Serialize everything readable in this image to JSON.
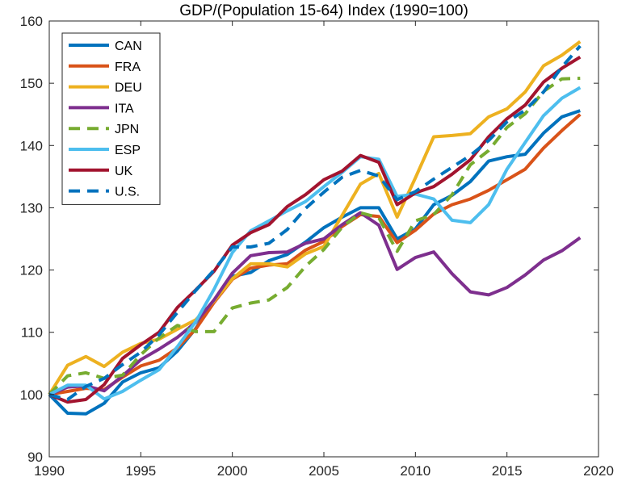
{
  "chart_data": {
    "type": "line",
    "title": "GDP/(Population 15-64) Index  (1990=100)",
    "xlabel": "",
    "ylabel": "",
    "xlim": [
      1990,
      2020
    ],
    "ylim": [
      90,
      160
    ],
    "xticks": [
      1990,
      1995,
      2000,
      2005,
      2010,
      2015,
      2020
    ],
    "yticks": [
      90,
      100,
      110,
      120,
      130,
      140,
      150,
      160
    ],
    "grid": false,
    "legend_position": "top-left",
    "x": [
      1990,
      1991,
      1992,
      1993,
      1994,
      1995,
      1996,
      1997,
      1998,
      1999,
      2000,
      2001,
      2002,
      2003,
      2004,
      2005,
      2006,
      2007,
      2008,
      2009,
      2010,
      2011,
      2012,
      2013,
      2014,
      2015,
      2016,
      2017,
      2018,
      2019
    ],
    "series": [
      {
        "name": "CAN",
        "color": "#0072BD",
        "dash": "solid",
        "values": [
          100,
          97,
          96.9,
          98.6,
          102,
          103.5,
          104.3,
          107,
          110.6,
          115,
          119,
          119.6,
          121.5,
          122.5,
          124.5,
          126.8,
          128.5,
          130,
          130,
          125,
          126.6,
          130.5,
          132,
          134.2,
          137.5,
          138.2,
          138.6,
          142,
          144.6,
          145.6
        ]
      },
      {
        "name": "FRA",
        "color": "#D95319",
        "dash": "solid",
        "values": [
          100,
          100.5,
          101,
          100.8,
          102.8,
          104.6,
          105.5,
          107.5,
          110.5,
          114.8,
          118.5,
          120.3,
          120.8,
          121,
          123.2,
          124.6,
          127,
          128.9,
          128.6,
          124.4,
          126.4,
          129,
          130.5,
          131.4,
          132.8,
          134.5,
          136.2,
          139.6,
          142.4,
          145
        ]
      },
      {
        "name": "DEU",
        "color": "#EDB120",
        "dash": "solid",
        "values": [
          100,
          104.7,
          106.1,
          104.5,
          106.8,
          108.2,
          108.9,
          110.5,
          112,
          115,
          118.6,
          121,
          121,
          120.5,
          122.6,
          123.8,
          128.8,
          133.8,
          135.5,
          128.5,
          134.8,
          141.4,
          141.6,
          141.9,
          144.6,
          145.9,
          148.6,
          152.8,
          154.5,
          156.7
        ]
      },
      {
        "name": "ITA",
        "color": "#7E2F8E",
        "dash": "solid",
        "values": [
          100,
          101.2,
          101.4,
          100.6,
          103,
          105.6,
          107.3,
          109.2,
          111.6,
          115.2,
          119.5,
          122.3,
          122.8,
          122.9,
          124.3,
          125,
          127.3,
          129.2,
          127.2,
          120.1,
          122,
          122.9,
          119.4,
          116.5,
          116,
          117.2,
          119.2,
          121.6,
          123.1,
          125.2
        ]
      },
      {
        "name": "JPN",
        "color": "#77AC30",
        "dash": "dashed",
        "values": [
          100,
          103,
          103.5,
          102.6,
          103.1,
          106.4,
          109.1,
          111.1,
          110.1,
          110.1,
          113.9,
          114.7,
          115.2,
          117.2,
          120.6,
          123.3,
          126.9,
          129.2,
          128.4,
          123,
          127.9,
          128.9,
          132.1,
          136.9,
          139.2,
          142.9,
          145.1,
          148.7,
          150.7,
          150.8
        ]
      },
      {
        "name": "ESP",
        "color": "#4DBEEE",
        "dash": "solid",
        "values": [
          100,
          101.5,
          101.5,
          99.3,
          100.5,
          102.3,
          104,
          107.7,
          111.7,
          116.9,
          122.8,
          126.3,
          127.9,
          129.5,
          131,
          133.4,
          135.7,
          138.2,
          137.8,
          131.8,
          132.2,
          131.4,
          128,
          127.6,
          130.5,
          136.2,
          140.5,
          144.8,
          147.6,
          149.3
        ]
      },
      {
        "name": "UK",
        "color": "#A2142F",
        "dash": "solid",
        "values": [
          100,
          98.8,
          99.2,
          101.6,
          105.8,
          108,
          110,
          114,
          116.8,
          119.8,
          124,
          126,
          127.3,
          130.2,
          132.1,
          134.5,
          135.9,
          138.4,
          137.3,
          130.5,
          132.4,
          133.4,
          135.4,
          137.7,
          141.4,
          144.3,
          146.5,
          150.2,
          152.4,
          154.2
        ]
      },
      {
        "name": "U.S.",
        "color": "#0072BD",
        "dash": "dashed",
        "values": [
          100,
          99.2,
          101.3,
          102.6,
          104.8,
          106.8,
          109.6,
          113.2,
          116.7,
          120,
          123.7,
          123.7,
          124.3,
          126.5,
          129.9,
          132.5,
          134.9,
          136,
          135.1,
          131.3,
          132.6,
          134.6,
          136.5,
          138.4,
          140.8,
          143.8,
          145.7,
          148.6,
          152.6,
          156
        ]
      }
    ]
  }
}
